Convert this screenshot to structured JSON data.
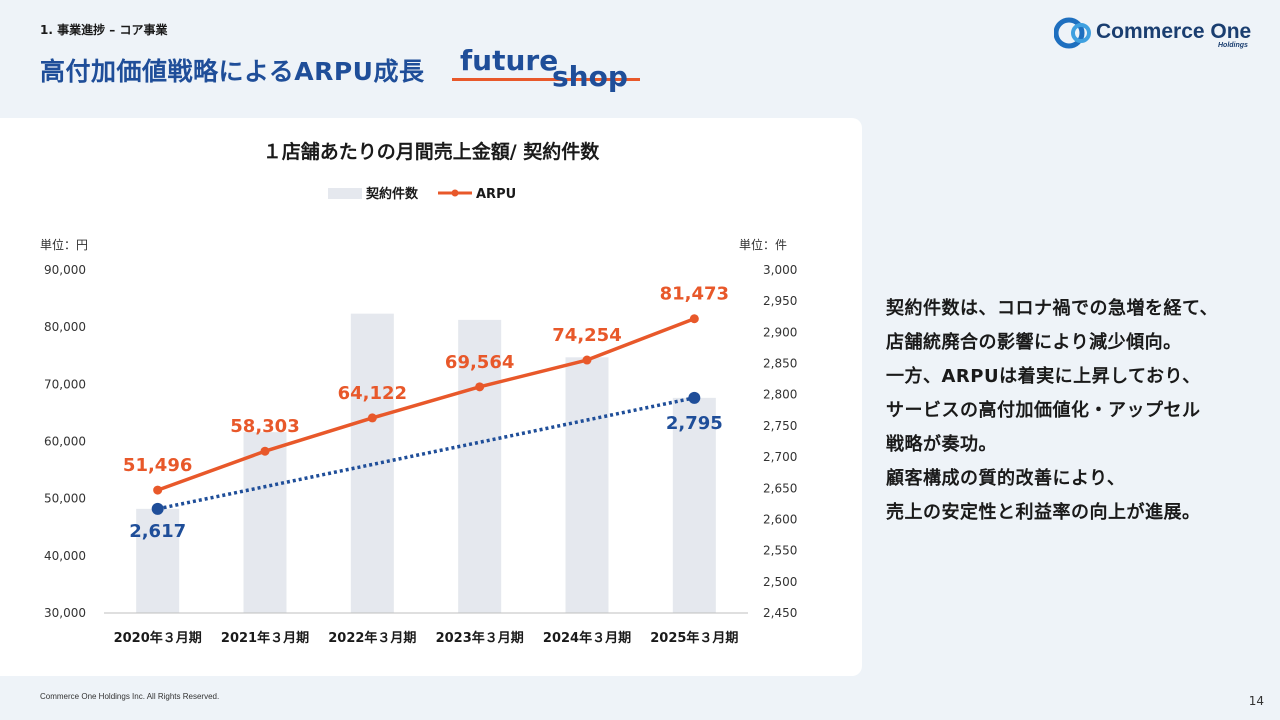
{
  "header": {
    "section": "1. 事業進捗 – コア事業",
    "title": "高付加価値戦略によるARPU成長",
    "product_logo": {
      "word1": "future",
      "word2": "shop"
    },
    "company_logo": {
      "name": "Commerce One",
      "sub": "Holdings"
    }
  },
  "chart_data": {
    "type": "bar+line",
    "title": "１店舗あたりの月間売上金額/ 契約件数",
    "legend": {
      "placement": "top-center",
      "items": [
        "契約件数",
        "ARPU"
      ]
    },
    "left_unit": "単位：円",
    "right_unit": "単位：件",
    "categories": [
      "2020年３月期",
      "2021年３月期",
      "2022年３月期",
      "2023年３月期",
      "2024年３月期",
      "2025年３月期"
    ],
    "left_axis": {
      "min": 30000,
      "max": 90000,
      "ticks": [
        "90,000",
        "80,000",
        "70,000",
        "60,000",
        "50,000",
        "40,000",
        "30,000"
      ],
      "tick_values": [
        90000,
        80000,
        70000,
        60000,
        50000,
        40000,
        30000
      ]
    },
    "right_axis": {
      "min": 2450,
      "max": 3000,
      "ticks": [
        "3,000",
        "2,950",
        "2,900",
        "2,850",
        "2,800",
        "2,750",
        "2,700",
        "2,650",
        "2,600",
        "2,550",
        "2,500",
        "2,450"
      ],
      "tick_values": [
        3000,
        2950,
        2900,
        2850,
        2800,
        2750,
        2700,
        2650,
        2600,
        2550,
        2500,
        2450
      ]
    },
    "series": [
      {
        "name": "契約件数",
        "kind": "bar",
        "axis": "right",
        "color": "#e5e8ee",
        "values": [
          2617,
          2740,
          2930,
          2920,
          2860,
          2795
        ]
      },
      {
        "name": "ARPU",
        "kind": "line",
        "axis": "left",
        "color": "#e8582a",
        "values": [
          51496,
          58303,
          64122,
          69564,
          74254,
          81473
        ],
        "labels": [
          "51,496",
          "58,303",
          "64,122",
          "69,564",
          "74,254",
          "81,473"
        ]
      },
      {
        "kind": "trend",
        "axis": "right",
        "color": "#1f4e99",
        "from": {
          "index": 0,
          "value": 2617,
          "label": "2,617"
        },
        "to": {
          "index": 5,
          "value": 2795,
          "label": "2,795"
        }
      }
    ]
  },
  "side_text": [
    "契約件数は、コロナ禍での急増を経て、",
    "店舗統廃合の影響により減少傾向。",
    "一方、ARPUは着実に上昇しており、",
    "サービスの高付加価値化・アップセル",
    "戦略が奏功。",
    "顧客構成の質的改善により、",
    "売上の安定性と利益率の向上が進展。"
  ],
  "footer": {
    "copyright": "Commerce One Holdings Inc. All Rights Reserved.",
    "page_number": "14"
  }
}
